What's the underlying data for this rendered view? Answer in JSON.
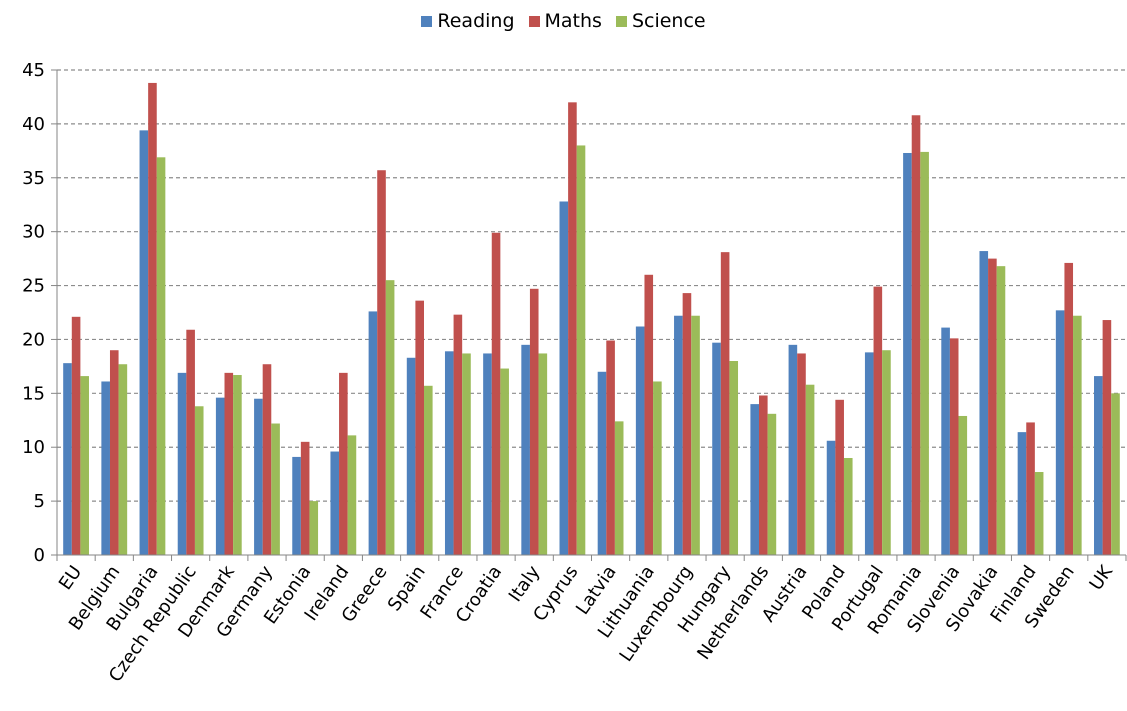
{
  "chart_data": {
    "type": "bar",
    "title": "",
    "xlabel": "",
    "ylabel": "",
    "ylim": [
      0,
      45
    ],
    "yticks": [
      0,
      5,
      10,
      15,
      20,
      25,
      30,
      35,
      40,
      45
    ],
    "grid": true,
    "legend_position": "top-center",
    "categories": [
      "EU",
      "Belgium",
      "Bulgaria",
      "Czech Republic",
      "Denmark",
      "Germany",
      "Estonia",
      "Ireland",
      "Greece",
      "Spain",
      "France",
      "Croatia",
      "Italy",
      "Cyprus",
      "Latvia",
      "Lithuania",
      "Luxembourg",
      "Hungary",
      "Netherlands",
      "Austria",
      "Poland",
      "Portugal",
      "Romania",
      "Slovenia",
      "Slovakia",
      "Finland",
      "Sweden",
      "UK"
    ],
    "series": [
      {
        "name": "Reading",
        "color": "#4f81bd",
        "values": [
          17.8,
          16.1,
          39.4,
          16.9,
          14.6,
          14.5,
          9.1,
          9.6,
          22.6,
          18.3,
          18.9,
          18.7,
          19.5,
          32.8,
          17.0,
          21.2,
          22.2,
          19.7,
          14.0,
          19.5,
          10.6,
          18.8,
          37.3,
          21.1,
          28.2,
          11.4,
          22.7,
          16.6
        ]
      },
      {
        "name": "Maths",
        "color": "#c0504d",
        "values": [
          22.1,
          19.0,
          43.8,
          20.9,
          16.9,
          17.7,
          10.5,
          16.9,
          35.7,
          23.6,
          22.3,
          29.9,
          24.7,
          42.0,
          19.9,
          26.0,
          24.3,
          28.1,
          14.8,
          18.7,
          14.4,
          24.9,
          40.8,
          20.1,
          27.5,
          12.3,
          27.1,
          21.8
        ]
      },
      {
        "name": "Science",
        "color": "#9bbb59",
        "values": [
          16.6,
          17.7,
          36.9,
          13.8,
          16.7,
          12.2,
          5.0,
          11.1,
          25.5,
          15.7,
          18.7,
          17.3,
          18.7,
          38.0,
          12.4,
          16.1,
          22.2,
          18.0,
          13.1,
          15.8,
          9.0,
          19.0,
          37.4,
          12.9,
          26.8,
          7.7,
          22.2,
          15.0
        ]
      }
    ]
  }
}
